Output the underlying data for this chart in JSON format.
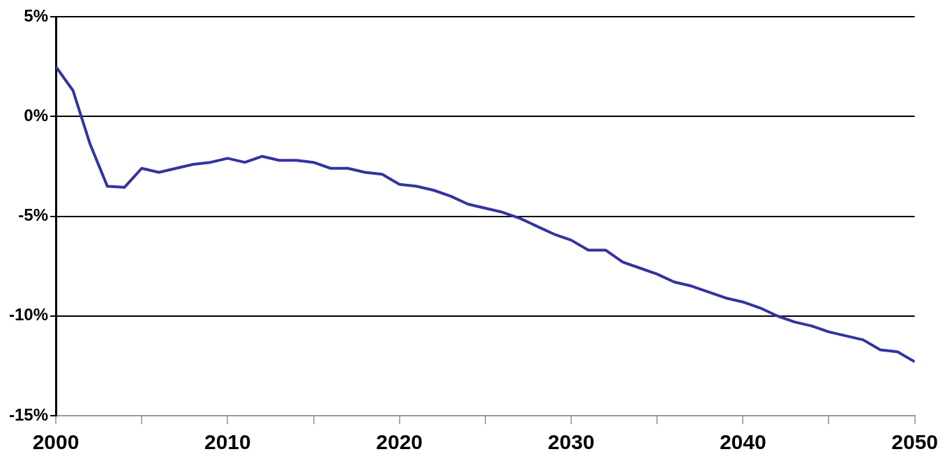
{
  "chart_data": {
    "type": "line",
    "x": [
      2000,
      2001,
      2002,
      2003,
      2004,
      2005,
      2006,
      2007,
      2008,
      2009,
      2010,
      2011,
      2012,
      2013,
      2014,
      2015,
      2016,
      2017,
      2018,
      2019,
      2020,
      2021,
      2022,
      2023,
      2024,
      2025,
      2026,
      2027,
      2028,
      2029,
      2030,
      2031,
      2032,
      2033,
      2034,
      2035,
      2036,
      2037,
      2038,
      2039,
      2040,
      2041,
      2042,
      2043,
      2044,
      2045,
      2046,
      2047,
      2048,
      2049,
      2050
    ],
    "series": [
      {
        "color": "#3333a0",
        "values": [
          2.5,
          1.3,
          -1.4,
          -3.5,
          -3.55,
          -2.6,
          -2.8,
          -2.6,
          -2.4,
          -2.3,
          -2.1,
          -2.3,
          -2.0,
          -2.2,
          -2.2,
          -2.3,
          -2.6,
          -2.6,
          -2.8,
          -2.9,
          -3.4,
          -3.5,
          -3.7,
          -4.0,
          -4.4,
          -4.6,
          -4.8,
          -5.1,
          -5.5,
          -5.9,
          -6.2,
          -6.7,
          -6.7,
          -7.3,
          -7.6,
          -7.9,
          -8.3,
          -8.5,
          -8.8,
          -9.1,
          -9.3,
          -9.6,
          -10.0,
          -10.3,
          -10.5,
          -10.8,
          -11.0,
          -11.2,
          -11.7,
          -11.8,
          -12.3
        ]
      }
    ],
    "xlim": [
      2000,
      2050
    ],
    "xticks": [
      2000,
      {
        "value": 2005,
        "label": null
      },
      2010,
      {
        "value": 2015,
        "label": null
      },
      2020,
      {
        "value": 2025,
        "label": null
      },
      2030,
      {
        "value": 2035,
        "label": null
      },
      2040,
      {
        "value": 2045,
        "label": null
      },
      2050
    ],
    "ylim": [
      -15,
      5
    ],
    "yticks": [
      {
        "value": -15,
        "label": "-15%"
      },
      {
        "value": -10,
        "label": "-10%"
      },
      {
        "value": -5,
        "label": "-5%"
      },
      {
        "value": 0,
        "label": "0%"
      },
      {
        "value": 5,
        "label": "5%"
      }
    ],
    "grid": "y",
    "legend": false,
    "marker": "none",
    "line_style": "solid"
  }
}
